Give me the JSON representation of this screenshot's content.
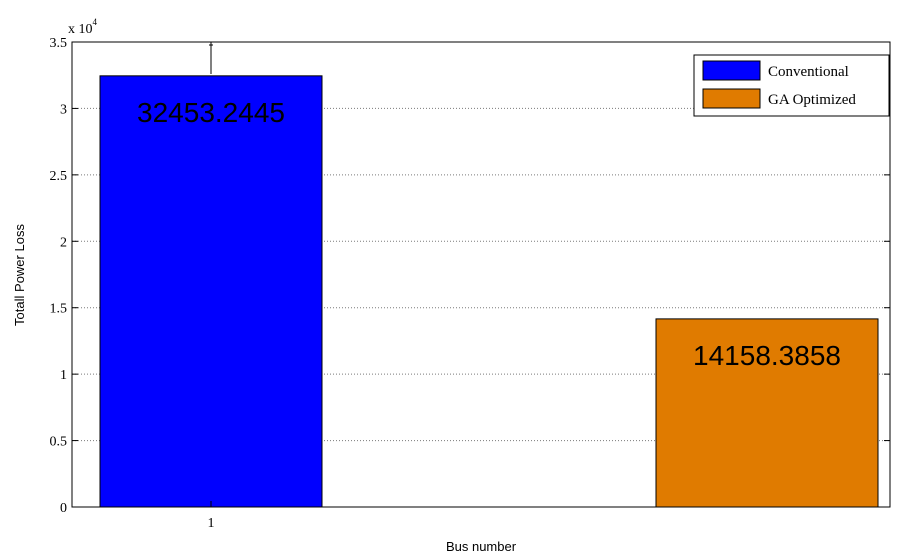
{
  "chart_data": {
    "type": "bar",
    "xlabel": "Bus number",
    "ylabel": "Totall Power Loss",
    "y_exponent_base": "x 10",
    "y_exponent_power": "4",
    "ylim": [
      0,
      35000
    ],
    "yticks": [
      0,
      5000,
      10000,
      15000,
      20000,
      25000,
      30000,
      35000
    ],
    "ytick_labels": [
      "0",
      "0.5",
      "1",
      "1.5",
      "2",
      "2.5",
      "3",
      "3.5"
    ],
    "xtick_labels": [
      "1"
    ],
    "grid": "horizontal",
    "legend_position": "top-right",
    "series": [
      {
        "name": "Conventional",
        "value": 32453.2445,
        "label": "32453.2445",
        "color": "#0000ff"
      },
      {
        "name": "GA Optimized",
        "value": 14158.3858,
        "label": "14158.3858",
        "color": "#e07b00"
      }
    ]
  }
}
